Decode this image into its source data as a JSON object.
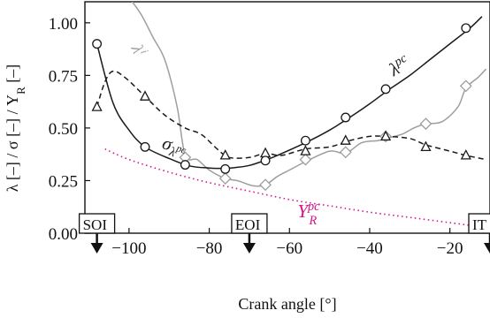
{
  "chart_data": {
    "type": "line",
    "xlabel": "Crank angle [°]",
    "ylabel": "λ [–]  /  σ [–]  /  Y_R [–]",
    "xlim": [
      -111,
      -10
    ],
    "ylim": [
      0,
      1.1
    ],
    "xticks": [
      -100,
      -80,
      -60,
      -40,
      -20
    ],
    "xtick_labels": [
      "−100",
      "−80",
      "−60",
      "−40",
      "−20"
    ],
    "yticks": [
      0,
      0.25,
      0.5,
      0.75,
      1.0
    ],
    "ytick_labels": [
      "0.00",
      "0.25",
      "0.50",
      "0.75",
      "1.00"
    ],
    "series": [
      {
        "name": "λ^pc",
        "color": "#1a1a1a",
        "style": "solid",
        "marker": "circle",
        "x": [
          -108,
          -104,
          -100,
          -96,
          -90,
          -85,
          -80,
          -76,
          -73,
          -70,
          -67,
          -63,
          -56,
          -50,
          -45,
          -40,
          -35,
          -30,
          -25,
          -20,
          -15,
          -12
        ],
        "y": [
          0.9,
          0.62,
          0.49,
          0.41,
          0.355,
          0.32,
          0.31,
          0.308,
          0.313,
          0.322,
          0.34,
          0.37,
          0.43,
          0.49,
          0.55,
          0.615,
          0.685,
          0.75,
          0.825,
          0.9,
          0.975,
          1.03
        ],
        "marker_x": [
          -108,
          -96,
          -86,
          -76,
          -66,
          -56,
          -46,
          -36,
          -16
        ],
        "marker_y": [
          0.9,
          0.41,
          0.325,
          0.305,
          0.345,
          0.44,
          0.55,
          0.685,
          0.975
        ]
      },
      {
        "name": "σ_λ^pc",
        "color": "#1a1a1a",
        "style": "dashed",
        "marker": "triangle",
        "x": [
          -108,
          -106,
          -104,
          -101,
          -96,
          -91,
          -86,
          -82,
          -78,
          -75,
          -70,
          -66,
          -62,
          -56,
          -50,
          -45,
          -40,
          -36,
          -30,
          -26,
          -20,
          -16,
          -11
        ],
        "y": [
          0.6,
          0.72,
          0.77,
          0.74,
          0.65,
          0.56,
          0.5,
          0.47,
          0.4,
          0.36,
          0.36,
          0.38,
          0.37,
          0.4,
          0.41,
          0.44,
          0.46,
          0.46,
          0.45,
          0.42,
          0.39,
          0.37,
          0.35
        ],
        "marker_x": [
          -108,
          -96,
          -76,
          -66,
          -56,
          -46,
          -36,
          -26,
          -16
        ],
        "marker_y": [
          0.6,
          0.65,
          0.37,
          0.38,
          0.39,
          0.44,
          0.46,
          0.41,
          0.37
        ]
      },
      {
        "name": "λ^i",
        "color": "#9e9e9e",
        "style": "solid",
        "marker": "diamond",
        "x": [
          -100,
          -97,
          -94,
          -91,
          -88,
          -86,
          -83,
          -80,
          -76,
          -73,
          -69,
          -66,
          -63,
          -60,
          -56,
          -50,
          -46,
          -42,
          -38,
          -36,
          -32,
          -29,
          -26,
          -22,
          -18,
          -16,
          -13,
          -11
        ],
        "y": [
          1.12,
          1.04,
          0.93,
          0.82,
          0.6,
          0.37,
          0.35,
          0.3,
          0.26,
          0.25,
          0.225,
          0.23,
          0.27,
          0.3,
          0.34,
          0.39,
          0.38,
          0.43,
          0.44,
          0.45,
          0.47,
          0.5,
          0.52,
          0.53,
          0.6,
          0.69,
          0.74,
          0.78
        ],
        "marker_x": [
          -86,
          -76,
          -66,
          -56,
          -46,
          -36,
          -26,
          -16
        ],
        "marker_y": [
          0.36,
          0.26,
          0.23,
          0.35,
          0.385,
          0.46,
          0.52,
          0.7
        ]
      },
      {
        "name": "Y_R^pc",
        "color": "#d4138a",
        "style": "dotted",
        "marker": "none",
        "x": [
          -106,
          -100,
          -90,
          -80,
          -70,
          -60,
          -50,
          -40,
          -30,
          -20,
          -12
        ],
        "y": [
          0.4,
          0.35,
          0.29,
          0.24,
          0.2,
          0.16,
          0.13,
          0.1,
          0.075,
          0.05,
          0.03
        ]
      }
    ],
    "annotations": [
      {
        "text": "SOI",
        "x": -108
      },
      {
        "text": "EOI",
        "x": -70
      },
      {
        "text": "IT",
        "x": -10
      }
    ],
    "series_labels": [
      {
        "base": "λ",
        "sup": "pc",
        "color": "#1a1a1a"
      },
      {
        "base": "σ",
        "sub": "λ",
        "subsup": "pc",
        "color": "#1a1a1a"
      },
      {
        "base": "λ",
        "sup": "i",
        "color": "#9e9e9e"
      },
      {
        "base": "Y",
        "sup": "pc",
        "sub": "R",
        "color": "#d4138a"
      }
    ]
  }
}
